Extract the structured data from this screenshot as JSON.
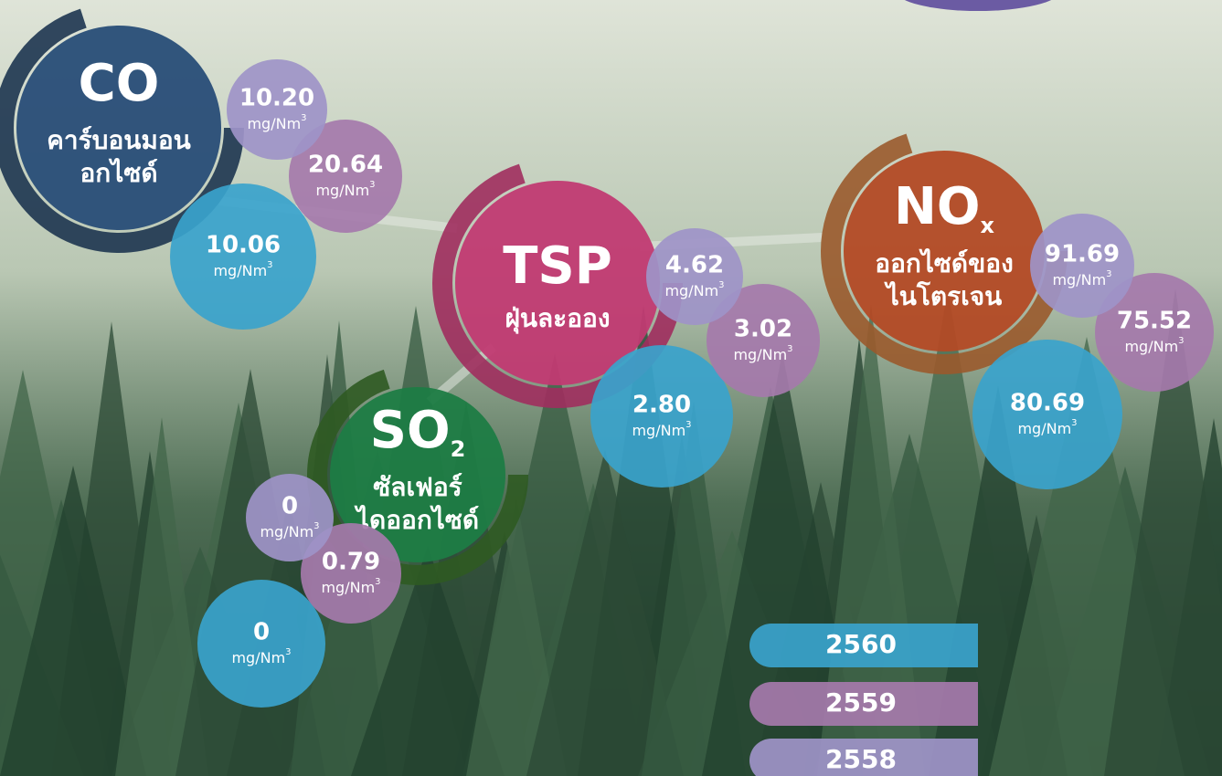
{
  "pollutants": [
    {
      "symbol": "CO",
      "name_lines": [
        "คาร์บอนมอน",
        "อกไซด์"
      ],
      "readings": [
        "10.06",
        "20.64",
        "10.20"
      ]
    },
    {
      "symbol": "TSP",
      "name_lines": [
        "ฝุ่นละออง"
      ],
      "readings": [
        "2.80",
        "3.02",
        "4.62"
      ]
    },
    {
      "symbol": "SO",
      "subscript": "2",
      "name_lines": [
        "ซัลเฟอร์",
        "ไดออกไซด์"
      ],
      "readings": [
        "0",
        "0.79",
        "0"
      ]
    },
    {
      "symbol": "NO",
      "subscript": "x",
      "name_lines": [
        "ออกไซด์ของ",
        "ไนโตรเจน"
      ],
      "readings": [
        "80.69",
        "75.52",
        "91.69"
      ]
    }
  ],
  "unit": "mg/Nm",
  "unit_power": "3",
  "legend": [
    "2560",
    "2559",
    "2558"
  ]
}
